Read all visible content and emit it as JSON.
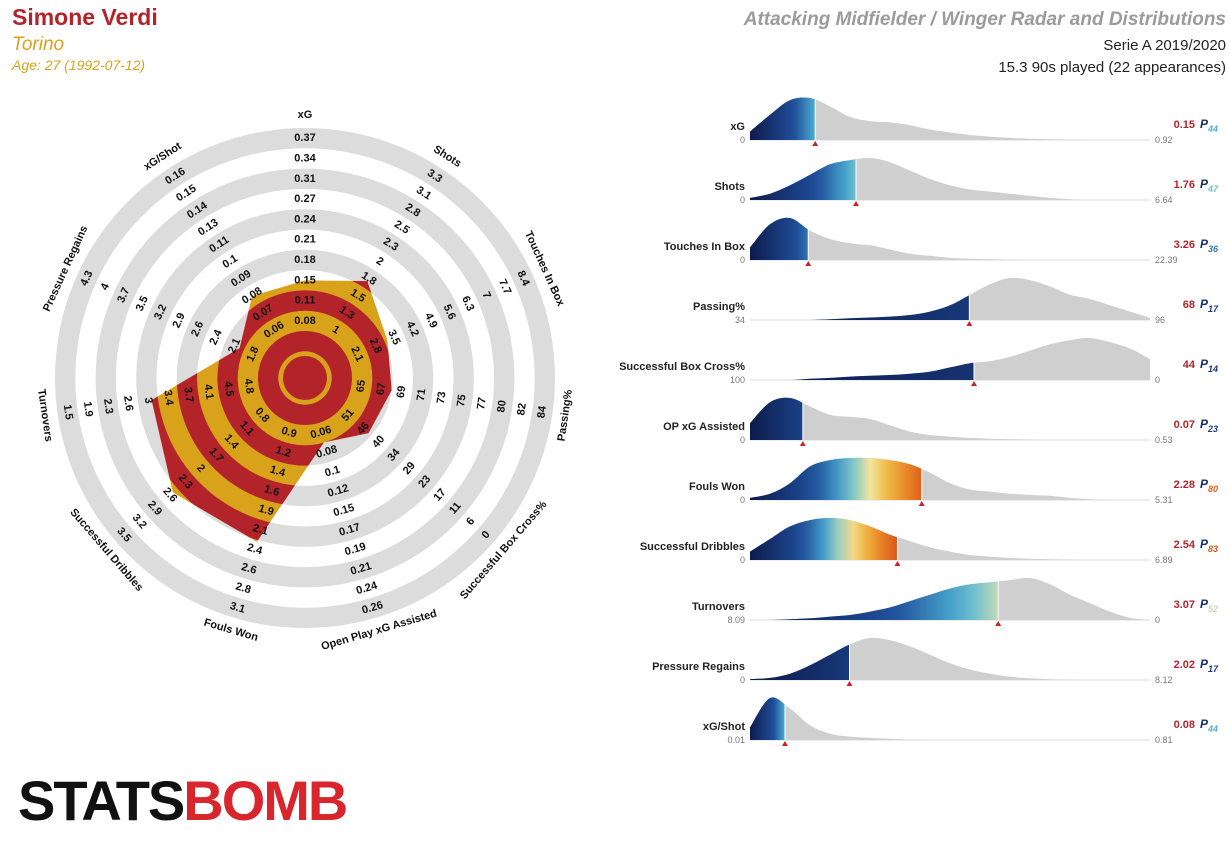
{
  "header": {
    "name": "Simone Verdi",
    "team": "Torino",
    "age": "Age: 27 (1992-07-12)",
    "title": "Attacking Midfielder / Winger Radar and Distributions",
    "competition": "Serie A 2019/2020",
    "minutes": "15.3 90s played (22 appearances)",
    "logo_left": "STATS",
    "logo_right": "BOMB"
  },
  "chart_data": [
    {
      "type": "radar",
      "axes": [
        {
          "label": "xG",
          "ticks": [
            0.08,
            0.11,
            0.15,
            0.18,
            0.21,
            0.24,
            0.27,
            0.31,
            0.34,
            0.37
          ],
          "value": 0.15
        },
        {
          "label": "Shots",
          "ticks": [
            1.0,
            1.3,
            1.5,
            1.8,
            2.0,
            2.3,
            2.5,
            2.8,
            3.1,
            3.3
          ],
          "value": 1.76
        },
        {
          "label": "Touches In Box",
          "ticks": [
            2.1,
            2.8,
            3.5,
            4.2,
            4.9,
            5.6,
            6.3,
            7.0,
            7.7,
            8.4
          ],
          "value": 3.26
        },
        {
          "label": "Passing%",
          "ticks": [
            65,
            67,
            69,
            71,
            73,
            75,
            77,
            80,
            82,
            84
          ],
          "value": 68
        },
        {
          "label": "Successful Box Cross%",
          "ticks": [
            51,
            46,
            40,
            34,
            29,
            23,
            17,
            11,
            6,
            0
          ],
          "value": 44
        },
        {
          "label": "Open Play xG Assisted",
          "ticks": [
            0.06,
            0.08,
            0.1,
            0.12,
            0.15,
            0.17,
            0.19,
            0.21,
            0.24,
            0.26
          ],
          "value": 0.07
        },
        {
          "label": "Fouls Won",
          "ticks": [
            0.9,
            1.2,
            1.4,
            1.6,
            1.9,
            2.1,
            2.4,
            2.6,
            2.8,
            3.1
          ],
          "value": 2.28
        },
        {
          "label": "Successful Dribbles",
          "ticks": [
            0.8,
            1.1,
            1.4,
            1.7,
            2.0,
            2.3,
            2.6,
            2.9,
            3.2,
            3.5
          ],
          "value": 2.54
        },
        {
          "label": "Turnovers",
          "ticks": [
            4.8,
            4.5,
            4.1,
            3.7,
            3.4,
            3.0,
            2.6,
            2.3,
            1.9,
            1.5
          ],
          "value": 3.07
        },
        {
          "label": "Pressure Regains",
          "ticks": [
            1.8,
            2.1,
            2.4,
            2.6,
            2.9,
            3.2,
            3.5,
            3.7,
            4.0,
            4.3
          ],
          "value": 2.02
        },
        {
          "label": "xG/Shot",
          "ticks": [
            0.06,
            0.07,
            0.08,
            0.09,
            0.1,
            0.11,
            0.13,
            0.14,
            0.15,
            0.16
          ],
          "value": 0.08
        }
      ]
    },
    {
      "type": "distribution",
      "percentile_prefix": "P",
      "rows": [
        {
          "label": "xG",
          "left": 0,
          "right": 0.92,
          "value": 0.15,
          "percentile": 44,
          "density": [
            0.2,
            0.6,
            0.95,
            1,
            0.8,
            0.55,
            0.45,
            0.42,
            0.35,
            0.25,
            0.18,
            0.12,
            0.08,
            0.05,
            0.03,
            0.02,
            0.01,
            0,
            0,
            0,
            0
          ]
        },
        {
          "label": "Shots",
          "left": 0,
          "right": 6.64,
          "value": 1.76,
          "percentile": 47,
          "density": [
            0.05,
            0.15,
            0.35,
            0.6,
            0.85,
            0.95,
            1,
            0.9,
            0.7,
            0.5,
            0.35,
            0.25,
            0.2,
            0.15,
            0.1,
            0.05,
            0.02,
            0,
            0,
            0,
            0
          ]
        },
        {
          "label": "Touches In Box",
          "left": 0,
          "right": 22.39,
          "value": 3.26,
          "percentile": 36,
          "density": [
            0.3,
            0.85,
            1,
            0.7,
            0.5,
            0.4,
            0.35,
            0.25,
            0.15,
            0.1,
            0.05,
            0.03,
            0.02,
            0.01,
            0,
            0,
            0,
            0,
            0,
            0,
            0
          ]
        },
        {
          "label": "Passing%",
          "left": 34,
          "right": 96,
          "value": 68,
          "percentile": 17,
          "density": [
            0,
            0,
            0,
            0,
            0.02,
            0.04,
            0.06,
            0.08,
            0.12,
            0.2,
            0.35,
            0.6,
            0.85,
            1,
            0.95,
            0.8,
            0.6,
            0.5,
            0.35,
            0.2,
            0.05
          ]
        },
        {
          "label": "Successful Box Cross%",
          "left": 100,
          "right": 0,
          "value": 44,
          "percentile": 14,
          "density": [
            0,
            0,
            0,
            0.03,
            0.05,
            0.08,
            0.1,
            0.12,
            0.15,
            0.2,
            0.3,
            0.4,
            0.45,
            0.55,
            0.7,
            0.85,
            0.95,
            1,
            0.9,
            0.75,
            0.5
          ]
        },
        {
          "label": "OP xG Assisted",
          "left": 0,
          "right": 0.53,
          "value": 0.07,
          "percentile": 23,
          "density": [
            0.4,
            0.9,
            1,
            0.8,
            0.6,
            0.55,
            0.5,
            0.35,
            0.2,
            0.12,
            0.08,
            0.05,
            0.03,
            0.02,
            0.01,
            0,
            0,
            0,
            0,
            0,
            0
          ]
        },
        {
          "label": "Fouls Won",
          "left": 0,
          "right": 5.31,
          "value": 2.28,
          "percentile": 80,
          "density": [
            0.05,
            0.15,
            0.4,
            0.8,
            0.95,
            1,
            1,
            0.95,
            0.85,
            0.65,
            0.4,
            0.25,
            0.2,
            0.15,
            0.12,
            0.1,
            0.05,
            0.02,
            0,
            0,
            0
          ]
        },
        {
          "label": "Successful Dribbles",
          "left": 0,
          "right": 6.89,
          "value": 2.54,
          "percentile": 83,
          "density": [
            0.2,
            0.5,
            0.8,
            0.95,
            1,
            0.95,
            0.8,
            0.6,
            0.45,
            0.3,
            0.2,
            0.12,
            0.08,
            0.05,
            0.03,
            0.02,
            0.01,
            0,
            0,
            0,
            0
          ]
        },
        {
          "label": "Turnovers",
          "left": 8.09,
          "right": 0,
          "value": 3.07,
          "percentile": 52,
          "density": [
            0,
            0,
            0.02,
            0.04,
            0.08,
            0.12,
            0.2,
            0.3,
            0.45,
            0.6,
            0.75,
            0.85,
            0.9,
            0.95,
            1,
            0.85,
            0.6,
            0.4,
            0.2,
            0.05,
            0
          ]
        },
        {
          "label": "Pressure Regains",
          "left": 0,
          "right": 8.12,
          "value": 2.02,
          "percentile": 17,
          "density": [
            0.02,
            0.05,
            0.15,
            0.35,
            0.6,
            0.85,
            1,
            0.95,
            0.8,
            0.6,
            0.4,
            0.25,
            0.15,
            0.08,
            0.04,
            0.02,
            0.01,
            0,
            0,
            0,
            0
          ]
        },
        {
          "label": "xG/Shot",
          "left": 0.01,
          "right": 0.81,
          "value": 0.08,
          "percentile": 44,
          "density": [
            0.3,
            1,
            0.75,
            0.35,
            0.15,
            0.08,
            0.05,
            0.03,
            0.01,
            0,
            0,
            0,
            0,
            0,
            0,
            0,
            0,
            0,
            0,
            0,
            0
          ]
        }
      ]
    }
  ]
}
